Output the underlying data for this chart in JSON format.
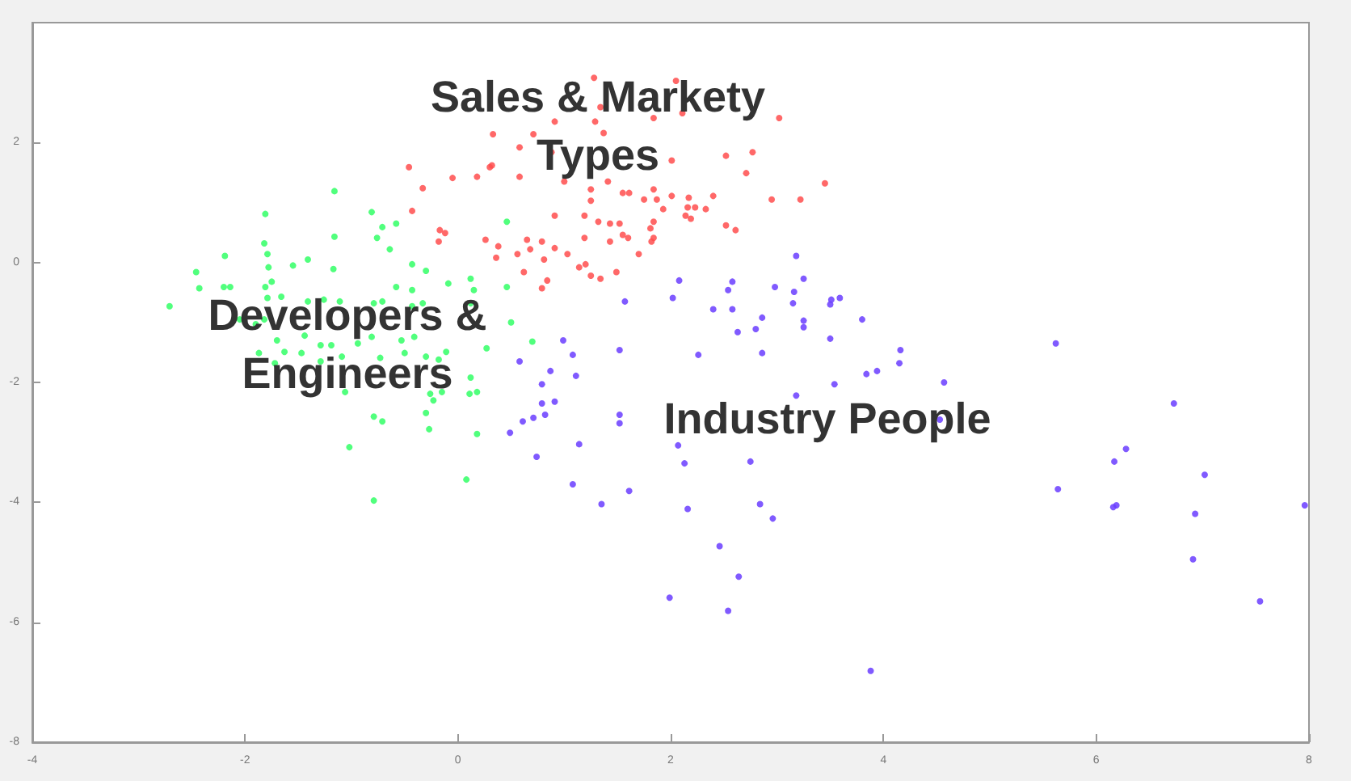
{
  "chart_data": {
    "type": "scatter",
    "marker": "circle",
    "grid": false,
    "xlim": [
      -4,
      8
    ],
    "xticks": [
      -4,
      -2,
      0,
      2,
      4,
      6,
      8
    ],
    "ylim": [
      -8,
      4
    ],
    "yticks": [
      -8,
      -6,
      -4,
      -2,
      0,
      2
    ],
    "annotations": [
      "Sales & Markety\nTypes",
      "Developers &\nEngineers",
      "Industry People"
    ],
    "series": [
      {
        "color": "#ff4d4d",
        "x": [
          -0.46,
          -0.33,
          -0.43,
          -0.17,
          -0.12,
          -0.18,
          -0.05,
          0.18,
          0.3,
          0.58,
          0.26,
          0.38,
          0.36,
          0.56,
          0.65,
          0.79,
          0.68,
          0.81,
          0.62,
          0.84,
          0.79,
          0.91,
          0.91,
          1.28,
          2.05,
          1.34,
          1.84,
          2.11,
          3.02,
          0.91,
          1.29,
          0.33,
          0.71,
          0.58,
          0.88,
          1.37,
          0.32,
          2.01,
          2.52,
          2.77,
          1.0,
          1.41,
          2.71,
          3.45,
          1.25,
          1.55,
          1.61,
          1.84,
          2.01,
          2.17,
          2.4,
          2.95,
          3.22,
          1.25,
          1.75,
          1.87,
          1.93,
          2.16,
          2.23,
          2.33,
          2.14,
          2.19,
          1.19,
          1.32,
          1.43,
          1.52,
          1.84,
          1.81,
          2.52,
          2.61,
          1.19,
          1.55,
          1.6,
          1.84,
          1.43,
          1.82,
          1.03,
          1.7,
          1.2,
          1.14,
          1.25,
          1.34,
          1.49
        ],
        "values": [
          1.59,
          1.24,
          0.86,
          0.54,
          0.49,
          0.35,
          1.41,
          1.43,
          1.59,
          1.43,
          0.38,
          0.27,
          0.08,
          0.14,
          0.38,
          0.35,
          0.22,
          0.05,
          -0.16,
          -0.3,
          -0.43,
          0.78,
          0.24,
          3.08,
          3.03,
          2.59,
          2.41,
          2.49,
          2.41,
          2.35,
          2.35,
          2.14,
          2.14,
          1.92,
          1.84,
          2.16,
          1.62,
          1.7,
          1.78,
          1.84,
          1.35,
          1.35,
          1.49,
          1.32,
          1.22,
          1.16,
          1.16,
          1.22,
          1.11,
          1.08,
          1.11,
          1.05,
          1.05,
          1.03,
          1.05,
          1.05,
          0.89,
          0.92,
          0.92,
          0.89,
          0.78,
          0.73,
          0.78,
          0.68,
          0.65,
          0.65,
          0.68,
          0.57,
          0.62,
          0.54,
          0.41,
          0.46,
          0.41,
          0.41,
          0.35,
          0.35,
          0.14,
          0.14,
          -0.03,
          -0.08,
          -0.22,
          -0.27,
          -0.16
        ]
      },
      {
        "color": "#33ff66",
        "x": [
          -1.16,
          -1.81,
          -0.81,
          -0.71,
          -0.58,
          -1.16,
          -0.76,
          -1.82,
          -0.64,
          -1.79,
          -2.19,
          -1.41,
          -1.55,
          -0.43,
          -1.17,
          -1.78,
          -2.46,
          -0.3,
          0.12,
          -1.75,
          -0.09,
          -2.2,
          -2.14,
          -2.43,
          -0.58,
          -1.81,
          -0.43,
          0.15,
          0.46,
          -2.71,
          -1.66,
          -1.79,
          -1.41,
          -1.26,
          -1.11,
          -0.79,
          -0.71,
          -0.43,
          -0.33,
          0.12,
          0.5,
          -1.9,
          -1.82,
          -2.05,
          -1.7,
          -1.44,
          -1.29,
          -1.19,
          -0.94,
          -0.81,
          -0.53,
          -0.41,
          0.27,
          0.7,
          -1.87,
          -1.63,
          -1.47,
          -1.29,
          -1.09,
          -0.73,
          -0.5,
          -0.3,
          -0.18,
          -0.11,
          -1.72,
          -1.06,
          -0.26,
          -0.15,
          0.11,
          0.18,
          -0.23,
          0.12,
          -0.3,
          -0.79,
          -0.71,
          -0.27,
          0.18,
          -1.02,
          0.08,
          -0.79,
          0.46
        ],
        "values": [
          1.19,
          0.81,
          0.84,
          0.59,
          0.65,
          0.43,
          0.41,
          0.32,
          0.22,
          0.14,
          0.11,
          0.05,
          -0.05,
          -0.03,
          -0.11,
          -0.08,
          -0.16,
          -0.14,
          -0.27,
          -0.32,
          -0.35,
          -0.41,
          -0.41,
          -0.43,
          -0.41,
          -0.41,
          -0.46,
          -0.46,
          -0.41,
          -0.73,
          -0.57,
          -0.59,
          -0.65,
          -0.62,
          -0.65,
          -0.68,
          -0.65,
          -0.73,
          -0.68,
          -0.68,
          -1.0,
          -1.03,
          -0.95,
          -0.95,
          -1.3,
          -1.22,
          -1.38,
          -1.38,
          -1.35,
          -1.24,
          -1.3,
          -1.24,
          -1.43,
          -1.32,
          -1.51,
          -1.49,
          -1.51,
          -1.65,
          -1.57,
          -1.59,
          -1.51,
          -1.57,
          -1.62,
          -1.49,
          -1.68,
          -2.16,
          -2.19,
          -2.16,
          -2.19,
          -2.16,
          -2.3,
          -1.92,
          -2.51,
          -2.57,
          -2.65,
          -2.78,
          -2.86,
          -3.08,
          -3.62,
          -3.97,
          0.68
        ]
      },
      {
        "color": "#6a3dff",
        "x": [
          3.18,
          2.08,
          2.58,
          2.54,
          2.98,
          3.25,
          3.16,
          3.5,
          3.51,
          3.59,
          3.15,
          1.57,
          2.02,
          2.4,
          2.58,
          2.86,
          3.25,
          3.25,
          2.8,
          2.63,
          3.8,
          3.5,
          0.99,
          1.52,
          1.08,
          2.26,
          2.86,
          4.16,
          4.15,
          0.58,
          0.87,
          1.11,
          3.84,
          3.94,
          3.54,
          4.57,
          0.79,
          3.18,
          0.79,
          0.91,
          0.61,
          0.71,
          0.82,
          1.52,
          1.52,
          0.49,
          1.14,
          2.07,
          2.13,
          2.75,
          0.74,
          1.08,
          1.61,
          1.35,
          2.16,
          2.84,
          2.96,
          2.46,
          2.64,
          1.99,
          2.54,
          3.88,
          4.53,
          5.62,
          6.73,
          6.28,
          6.17,
          5.64,
          6.19,
          6.16,
          7.02,
          6.93,
          6.91,
          7.54,
          7.96
        ],
        "values": [
          0.11,
          -0.3,
          -0.32,
          -0.46,
          -0.41,
          -0.27,
          -0.49,
          -0.7,
          -0.62,
          -0.59,
          -0.68,
          -0.65,
          -0.59,
          -0.78,
          -0.78,
          -0.92,
          -0.97,
          -1.08,
          -1.11,
          -1.16,
          -0.95,
          -1.27,
          -1.3,
          -1.46,
          -1.54,
          -1.54,
          -1.51,
          -1.46,
          -1.68,
          -1.65,
          -1.81,
          -1.89,
          -1.86,
          -1.81,
          -2.03,
          -2.0,
          -2.03,
          -2.22,
          -2.35,
          -2.32,
          -2.65,
          -2.59,
          -2.54,
          -2.54,
          -2.68,
          -2.84,
          -3.03,
          -3.05,
          -3.35,
          -3.32,
          -3.24,
          -3.7,
          -3.81,
          -4.03,
          -4.11,
          -4.03,
          -4.27,
          -4.73,
          -5.24,
          -5.59,
          -5.81,
          -6.81,
          -2.62,
          -1.35,
          -2.35,
          -3.11,
          -3.32,
          -3.78,
          -4.05,
          -4.08,
          -3.54,
          -4.19,
          -4.95,
          -5.65,
          -4.05
        ]
      }
    ]
  }
}
